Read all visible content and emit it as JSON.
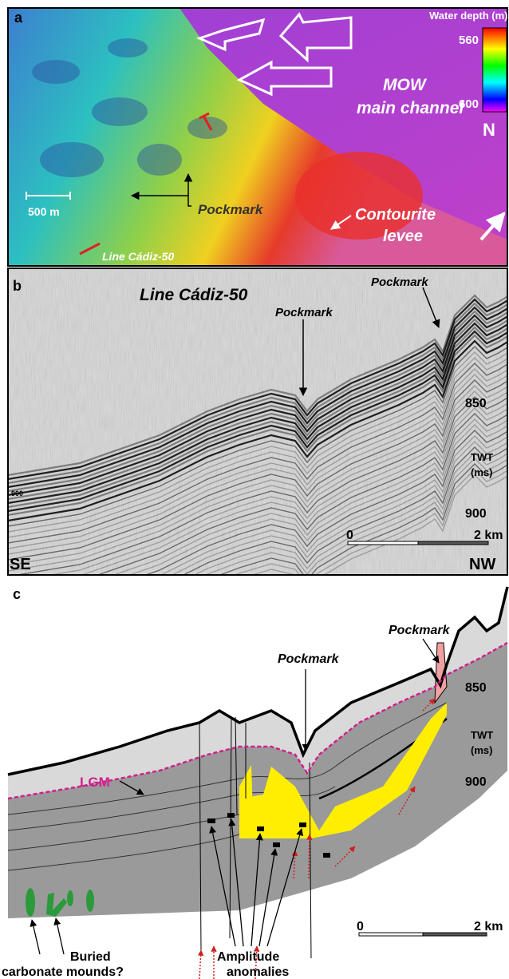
{
  "panel_a": {
    "label": "a",
    "colorbar": {
      "title": "Water depth (m)",
      "top": 560,
      "bottom": 600
    },
    "channel": [
      "MOW",
      "main channel"
    ],
    "north": "N",
    "scale": "500 m",
    "pockmark": "Pockmark",
    "levee": [
      "Contourite",
      "levee"
    ],
    "line": "Line Cádiz-50"
  },
  "panel_b": {
    "label": "b",
    "title": "Line Cádiz-50",
    "pockmarks": [
      "Pockmark",
      "Pockmark"
    ],
    "depth_ticks": [
      850,
      900
    ],
    "axis": [
      "TWT",
      "(ms)"
    ],
    "inner_tick": 900,
    "scale": [
      "0",
      "2 km"
    ],
    "ends": [
      "SE",
      "NW"
    ]
  },
  "panel_c": {
    "label": "c",
    "pockmarks": [
      "Pockmark",
      "Pockmark"
    ],
    "depth_ticks": [
      850,
      900
    ],
    "axis": [
      "TWT",
      "(ms)"
    ],
    "lgm": "LGM",
    "scale": [
      "0",
      "2 km"
    ],
    "mounds": [
      "Buried",
      "carbonate mounds?"
    ],
    "anomalies": [
      "Amplitude",
      "anomalies"
    ]
  }
}
